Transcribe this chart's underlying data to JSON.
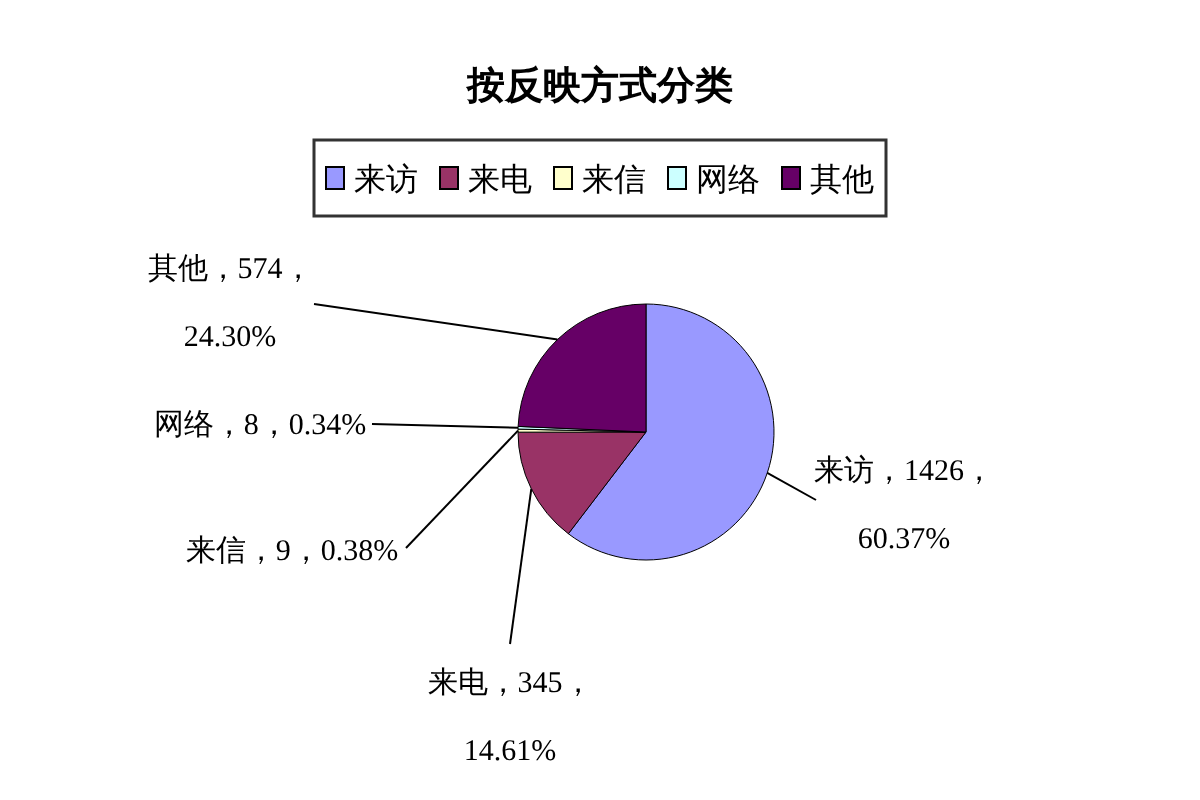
{
  "chart_data": {
    "type": "pie",
    "title": "按反映方式分类",
    "categories": [
      "来访",
      "来电",
      "来信",
      "网络",
      "其他"
    ],
    "values": [
      1426,
      345,
      9,
      8,
      574
    ],
    "colors": [
      "#9999ff",
      "#993366",
      "#ffffcc",
      "#ccffff",
      "#660066"
    ],
    "value_labels": [
      "来访，1426，60.37%",
      "来电，345，14.61%",
      "来信，9，0.38%",
      "网络，8，0.34%",
      "其他，574，24.30%"
    ],
    "legend": "top"
  }
}
